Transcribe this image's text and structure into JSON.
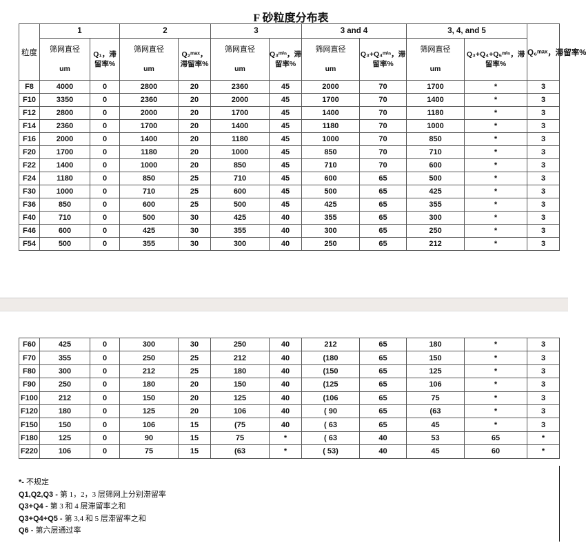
{
  "title": "F 砂粒度分布表",
  "header": {
    "groups": [
      "1",
      "2",
      "3",
      "3 and 4",
      "3, 4, and 5"
    ],
    "grain": "粒度",
    "sieve": "筛网直径",
    "unit": "um",
    "q1": "Q₁，滞留率%",
    "q2": "Q₂ᵐᵃˣ，滞留率%",
    "q3": "Q₃ᵐⁱⁿ，滞留率%",
    "q34": "Q₃+Q₄ᵐⁱⁿ，滞留率%",
    "q345": "Q₃+Q₄+Q₅ᵐⁱⁿ，滞留率%",
    "q6": "Q₆ᵐᵃˣ，滞留率%"
  },
  "rows1": [
    [
      "F8",
      "4000",
      "0",
      "2800",
      "20",
      "2360",
      "45",
      "2000",
      "70",
      "1700",
      "*",
      "3"
    ],
    [
      "F10",
      "3350",
      "0",
      "2360",
      "20",
      "2000",
      "45",
      "1700",
      "70",
      "1400",
      "*",
      "3"
    ],
    [
      "F12",
      "2800",
      "0",
      "2000",
      "20",
      "1700",
      "45",
      "1400",
      "70",
      "1180",
      "*",
      "3"
    ],
    [
      "F14",
      "2360",
      "0",
      "1700",
      "20",
      "1400",
      "45",
      "1180",
      "70",
      "1000",
      "*",
      "3"
    ],
    [
      "F16",
      "2000",
      "0",
      "1400",
      "20",
      "1180",
      "45",
      "1000",
      "70",
      "850",
      "*",
      "3"
    ],
    [
      "F20",
      "1700",
      "0",
      "1180",
      "20",
      "1000",
      "45",
      "850",
      "70",
      "710",
      "*",
      "3"
    ],
    [
      "F22",
      "1400",
      "0",
      "1000",
      "20",
      "850",
      "45",
      "710",
      "70",
      "600",
      "*",
      "3"
    ],
    [
      "F24",
      "1180",
      "0",
      "850",
      "25",
      "710",
      "45",
      "600",
      "65",
      "500",
      "*",
      "3"
    ],
    [
      "F30",
      "1000",
      "0",
      "710",
      "25",
      "600",
      "45",
      "500",
      "65",
      "425",
      "*",
      "3"
    ],
    [
      "F36",
      "850",
      "0",
      "600",
      "25",
      "500",
      "45",
      "425",
      "65",
      "355",
      "*",
      "3"
    ],
    [
      "F40",
      "710",
      "0",
      "500",
      "30",
      "425",
      "40",
      "355",
      "65",
      "300",
      "*",
      "3"
    ],
    [
      "F46",
      "600",
      "0",
      "425",
      "30",
      "355",
      "40",
      "300",
      "65",
      "250",
      "*",
      "3"
    ],
    [
      "F54",
      "500",
      "0",
      "355",
      "30",
      "300",
      "40",
      "250",
      "65",
      "212",
      "*",
      "3"
    ]
  ],
  "rows2": [
    [
      "F60",
      "425",
      "0",
      "300",
      "30",
      "250",
      "40",
      "212",
      "65",
      "180",
      "*",
      "3"
    ],
    [
      "F70",
      "355",
      "0",
      "250",
      "25",
      "212",
      "40",
      "(180",
      "65",
      "150",
      "*",
      "3"
    ],
    [
      "F80",
      "300",
      "0",
      "212",
      "25",
      "180",
      "40",
      "(150",
      "65",
      "125",
      "*",
      "3"
    ],
    [
      "F90",
      "250",
      "0",
      "180",
      "20",
      "150",
      "40",
      "(125",
      "65",
      "106",
      "*",
      "3"
    ],
    [
      "F100",
      "212",
      "0",
      "150",
      "20",
      "125",
      "40",
      "(106",
      "65",
      "75",
      "*",
      "3"
    ],
    [
      "F120",
      "180",
      "0",
      "125",
      "20",
      "106",
      "40",
      "( 90",
      "65",
      "(63",
      "*",
      "3"
    ],
    [
      "F150",
      "150",
      "0",
      "106",
      "15",
      "(75",
      "40",
      "( 63",
      "65",
      "45",
      "*",
      "3"
    ],
    [
      "F180",
      "125",
      "0",
      "90",
      "15",
      "75",
      "*",
      "( 63",
      "40",
      "53",
      "65",
      "*"
    ],
    [
      "F220",
      "106",
      "0",
      "75",
      "15",
      "(63",
      "*",
      "( 53)",
      "40",
      "45",
      "60",
      "*"
    ]
  ],
  "notes": [
    {
      "key": "*-",
      "text": "不规定"
    },
    {
      "key": "Q1,Q2,Q3 -",
      "text": "第 1，2，3 层筛网上分别滞留率"
    },
    {
      "key": "Q3+Q4 -",
      "text": "第 3 和 4 层滞留率之和"
    },
    {
      "key": "Q3+Q4+Q5 -",
      "text": "第 3,4 和 5 层滞留率之和"
    },
    {
      "key": "Q6 -",
      "text": "第六层通过率"
    }
  ]
}
